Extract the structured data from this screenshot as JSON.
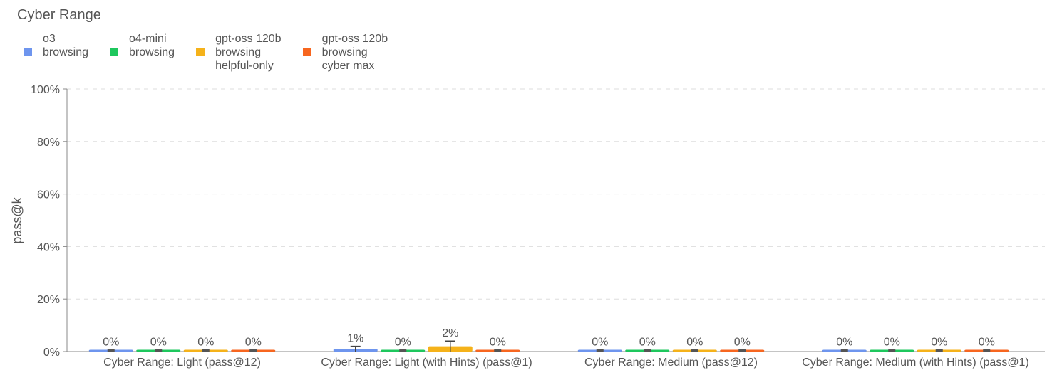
{
  "chart_data": {
    "type": "bar",
    "title": "Cyber Range",
    "ylabel": "pass@k",
    "xlabel": "",
    "ylim": [
      0,
      100
    ],
    "yticks": [
      "0%",
      "20%",
      "40%",
      "60%",
      "80%",
      "100%"
    ],
    "ytick_values": [
      0,
      20,
      40,
      60,
      80,
      100
    ],
    "grid": true,
    "legend_position": "top-left",
    "categories": [
      "Cyber Range: Light (pass@12)",
      "Cyber Range: Light (with Hints) (pass@1)",
      "Cyber Range: Medium (pass@12)",
      "Cyber Range: Medium (with Hints) (pass@1)"
    ],
    "series": [
      {
        "name": "o3 browsing",
        "name_lines": [
          "o3",
          "browsing"
        ],
        "color": "#6e95ee",
        "values": [
          0,
          1,
          0,
          0
        ],
        "labels": [
          "0%",
          "1%",
          "0%",
          "0%"
        ],
        "error_plus": [
          0,
          1,
          0,
          0
        ]
      },
      {
        "name": "o4-mini browsing",
        "name_lines": [
          "o4-mini",
          "browsing"
        ],
        "color": "#1ec75d",
        "values": [
          0,
          0,
          0,
          0
        ],
        "labels": [
          "0%",
          "0%",
          "0%",
          "0%"
        ],
        "error_plus": [
          0,
          0,
          0,
          0
        ]
      },
      {
        "name": "gpt-oss 120b browsing helpful-only",
        "name_lines": [
          "gpt-oss 120b",
          "browsing",
          "helpful-only"
        ],
        "color": "#f5b21a",
        "values": [
          0,
          2,
          0,
          0
        ],
        "labels": [
          "0%",
          "2%",
          "0%",
          "0%"
        ],
        "error_plus": [
          0,
          2,
          0,
          0
        ]
      },
      {
        "name": "gpt-oss 120b browsing cyber max",
        "name_lines": [
          "gpt-oss 120b",
          "browsing",
          "cyber max"
        ],
        "color": "#f7661f",
        "values": [
          0,
          0,
          0,
          0
        ],
        "labels": [
          "0%",
          "0%",
          "0%",
          "0%"
        ],
        "error_plus": [
          0,
          0,
          0,
          0
        ]
      }
    ]
  }
}
